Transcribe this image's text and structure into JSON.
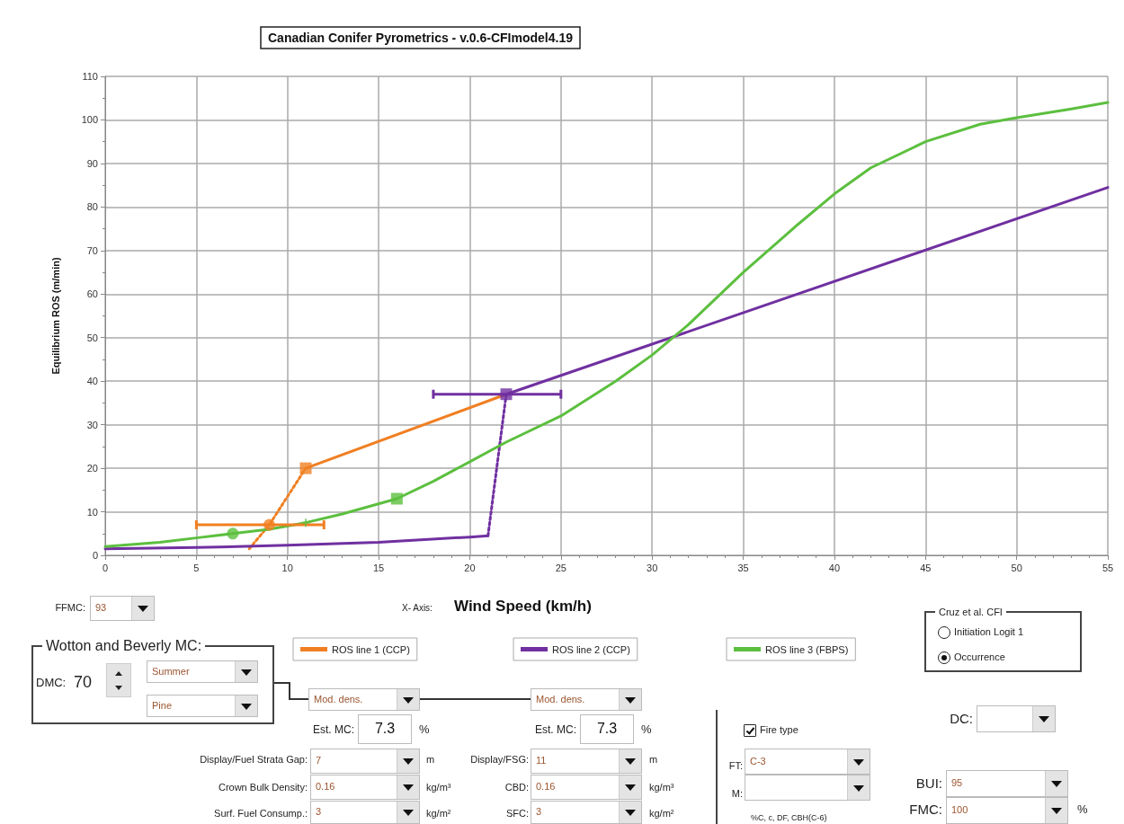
{
  "chart_data": {
    "type": "line",
    "title": "Canadian Conifer Pyrometrics - v.0.6-CFImodel4.19",
    "xlabel": "Wind Speed (km/h)",
    "ylabel": "Equilibrium ROS (m/min)",
    "xlim": [
      0,
      55
    ],
    "xticks": [
      0,
      5,
      10,
      15,
      20,
      25,
      30,
      35,
      40,
      45,
      50,
      55
    ],
    "ylim": [
      0,
      110
    ],
    "yticks": [
      0,
      10,
      20,
      30,
      40,
      50,
      60,
      70,
      80,
      90,
      100,
      110
    ],
    "grid": true,
    "legend": "bottom",
    "series": [
      {
        "name": "ROS line 1 (CCP)",
        "type": "line",
        "color": "#f07f22",
        "x": [
          11,
          22
        ],
        "values": [
          20,
          37
        ],
        "line_style": "solid",
        "marker": "none"
      },
      {
        "type": "line",
        "color": "#f07f22",
        "x": [
          7.9,
          9,
          11
        ],
        "values": [
          1.5,
          7,
          20
        ],
        "line_style": "dotted",
        "marker": "none"
      },
      {
        "type": "scatter",
        "color": "#f07f22",
        "x": [
          11
        ],
        "values": [
          20
        ],
        "marker": "square"
      },
      {
        "type": "scatter",
        "color": "#f07f22",
        "x": [
          9
        ],
        "values": [
          7
        ],
        "marker": "circle",
        "xerrors": [
          [
            5,
            12
          ]
        ]
      },
      {
        "name": "ROS line 2 (CCP)",
        "type": "line",
        "color": "#7030a0",
        "x": [
          0,
          5,
          10,
          15,
          20,
          21
        ],
        "values": [
          1.5,
          1.8,
          2.3,
          3,
          4.2,
          4.5
        ],
        "line_style": "solid",
        "marker": "none"
      },
      {
        "type": "line",
        "color": "#7030a0",
        "x": [
          21,
          22
        ],
        "values": [
          4.5,
          37
        ],
        "line_style": "dotted",
        "marker": "none"
      },
      {
        "type": "line",
        "color": "#7030a0",
        "x": [
          22,
          55
        ],
        "values": [
          37,
          84.5
        ],
        "line_style": "solid",
        "marker": "none"
      },
      {
        "type": "scatter",
        "color": "#7030a0",
        "x": [
          22
        ],
        "values": [
          37
        ],
        "marker": "square",
        "xerrors": [
          [
            18,
            25
          ]
        ]
      },
      {
        "name": "ROS line 3 (FBPS)",
        "type": "line",
        "color": "#5cbf3f",
        "x": [
          0,
          3,
          5,
          7,
          9,
          11,
          13,
          16,
          18,
          20,
          22,
          25,
          28,
          30,
          32,
          35,
          38,
          40,
          42,
          45,
          48,
          50,
          53,
          55
        ],
        "values": [
          2,
          3,
          4,
          5,
          6,
          7.5,
          9.5,
          13,
          17,
          21.5,
          26,
          32,
          40,
          46,
          53,
          65,
          76,
          83,
          89,
          95,
          99,
          100.5,
          102.5,
          104
        ],
        "line_style": "solid",
        "marker": "none"
      },
      {
        "type": "scatter",
        "color": "#5cbf3f",
        "x": [
          7
        ],
        "values": [
          5
        ],
        "marker": "circle"
      },
      {
        "type": "scatter",
        "color": "#5cbf3f",
        "x": [
          16
        ],
        "values": [
          13
        ],
        "marker": "square"
      },
      {
        "type": "scatter",
        "color": "#5cbf3f",
        "x": [
          11
        ],
        "values": [
          7.5
        ],
        "marker": "cross"
      }
    ],
    "annotations": [
      "X- Axis:",
      "FFMC:",
      "93",
      "Wotton and Beverly MC:",
      "DMC:",
      "70",
      "Summer",
      "Pine",
      "Mod. dens.",
      "Mod. dens.",
      "Est. MC:",
      "7.3",
      "%",
      "Est. MC:",
      "7.3",
      "%",
      "Display/Fuel Strata Gap:",
      "7",
      "m",
      "Crown Bulk Density:",
      "0.16",
      "kg/m³",
      "Surf. Fuel Consump.:",
      "3",
      "kg/m²",
      "Display/FSG:",
      "11",
      "m",
      "CBD:",
      "0.16",
      "kg/m³",
      "SFC:",
      "3",
      "kg/m²",
      "Cruz et al. CFI",
      "Initiation Logit 1",
      "Occurrence",
      "Fire type",
      "FT:",
      "C-3",
      "M:",
      "%C, c, DF, CBH(C-6)",
      "DC:",
      "BUI:",
      "95",
      "FMC:",
      "100",
      "%"
    ]
  }
}
